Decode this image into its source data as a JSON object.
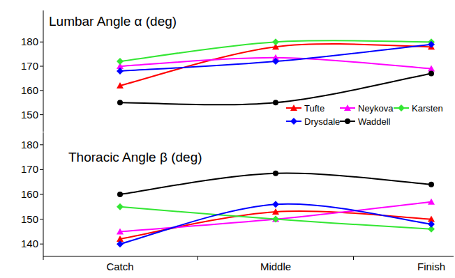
{
  "chart_data": [
    {
      "type": "line",
      "title": "Lumbar Angle α (deg)",
      "categories": [
        "Catch",
        "Middle",
        "Finish"
      ],
      "series": [
        {
          "name": "Tufte",
          "color": "#ff0000",
          "marker": "triangle",
          "values": [
            162,
            178,
            178
          ]
        },
        {
          "name": "Neykova",
          "color": "#ff00ff",
          "marker": "triangle",
          "values": [
            170,
            173.5,
            169
          ]
        },
        {
          "name": "Karsten",
          "color": "#33e633",
          "marker": "diamond",
          "values": [
            172,
            180,
            180
          ]
        },
        {
          "name": "Drysdale",
          "color": "#0000ff",
          "marker": "diamond",
          "values": [
            168,
            172,
            179
          ]
        },
        {
          "name": "Waddell",
          "color": "#000000",
          "marker": "circle",
          "values": [
            155,
            155,
            167
          ]
        }
      ],
      "ylim": [
        143,
        193
      ],
      "yticks": [
        150,
        160,
        170,
        180
      ],
      "grid": false,
      "legend": "lower right",
      "tick_labels": "y"
    },
    {
      "type": "line",
      "title": "Thoracic Angle β (deg)",
      "categories": [
        "Catch",
        "Middle",
        "Finish"
      ],
      "series": [
        {
          "name": "Tufte",
          "color": "#ff0000",
          "marker": "triangle",
          "values": [
            142,
            153,
            150
          ]
        },
        {
          "name": "Neykova",
          "color": "#ff00ff",
          "marker": "triangle",
          "values": [
            145,
            150,
            157
          ]
        },
        {
          "name": "Karsten",
          "color": "#33e633",
          "marker": "diamond",
          "values": [
            155,
            150,
            146
          ]
        },
        {
          "name": "Drysdale",
          "color": "#0000ff",
          "marker": "diamond",
          "values": [
            140,
            156,
            148
          ]
        },
        {
          "name": "Waddell",
          "color": "#000000",
          "marker": "circle",
          "values": [
            160,
            168.5,
            164
          ]
        }
      ],
      "ylim": [
        135,
        185
      ],
      "yticks": [
        140,
        150,
        160,
        170,
        180
      ],
      "grid": false
    }
  ]
}
